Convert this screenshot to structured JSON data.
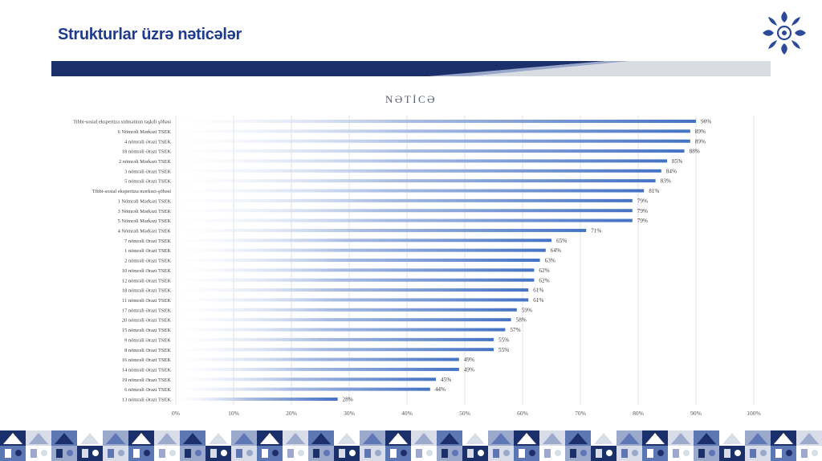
{
  "slide": {
    "title": "Strukturlar üzrə nəticələr"
  },
  "colors": {
    "title": "#1f3b8c",
    "bar": "#4472c4",
    "band_dark": "#1b2f6b",
    "band_light": "#d9dce3",
    "logo": "#2d4a9a"
  },
  "icons": {
    "logo": "snowflake-ornament-logo",
    "footer": "geometric-tile-pattern"
  },
  "chart_data": {
    "type": "bar",
    "orientation": "horizontal",
    "title": "NƏTİCƏ",
    "xlabel": "",
    "ylabel": "",
    "xlim": [
      0,
      100
    ],
    "ticks": [
      "0%",
      "10%",
      "20%",
      "30%",
      "40%",
      "50%",
      "60%",
      "70%",
      "80%",
      "90%",
      "100%"
    ],
    "grid": true,
    "categories": [
      "Tibbi-sosial ekspertiza xidmətinin təşkili şöbəsi",
      "6 Nömrəli Mərkəzi TSEK",
      "4 nömrəli Ərazi TSEK",
      "18 nömrəli Ərazi TSEK",
      "2 nömrəli Mərkəzi TSEK",
      "3 nömrəli Ərazi TSEK",
      "5 nömrəli Ərazi TSEK",
      "Tibbi-sosial ekspertiza mərkəzi-şöbəsi",
      "1 Nömrəli Mərkəzi TSEK",
      "3 Nömrəli Mərkəzi TSEK",
      "5 Nömrəli Mərkəzi TSEK",
      "4 Nömrəli Mərkəzi TSEK",
      "7 nömrəli Ərazi TSEK",
      "1 nömrəli Ərazi TSEK",
      "2 nömrəli Ərazi TSEK",
      "10 nömrəli Ərazi TSEK",
      "12 nömrəli Ərazi TSEK",
      "18 nömrəli Ərazi TSEK",
      "11 nömrəli Ərazi TSEK",
      "17 nömrəli Ərazi TSEK",
      "20 nömrəli Ərazi TSEK",
      "15 nömrəli Ərazi TSEK",
      "9 nömrəli Ərazi TSEK",
      "8 nömrəli Ərazi TSEK",
      "16 nömrəli Ərazi TSEK",
      "14 nömrəli Ərazi TSEK",
      "19 nömrəli Ərazi TSEK",
      "6 nömrəli Ərazi TSEK",
      "13 nömrəli Ərazi TSEK"
    ],
    "values": [
      90,
      89,
      89,
      88,
      85,
      84,
      83,
      81,
      79,
      79,
      79,
      71,
      65,
      64,
      63,
      62,
      62,
      61,
      61,
      59,
      58,
      57,
      55,
      55,
      49,
      49,
      45,
      44,
      28
    ],
    "value_labels": [
      "90%",
      "89%",
      "89%",
      "88%",
      "85%",
      "84%",
      "83%",
      "81%",
      "79%",
      "79%",
      "79%",
      "71%",
      "65%",
      "64%",
      "63%",
      "62%",
      "62%",
      "61%",
      "61%",
      "59%",
      "58%",
      "57%",
      "55%",
      "55%",
      "49%",
      "49%",
      "45%",
      "44%",
      "28%"
    ]
  }
}
